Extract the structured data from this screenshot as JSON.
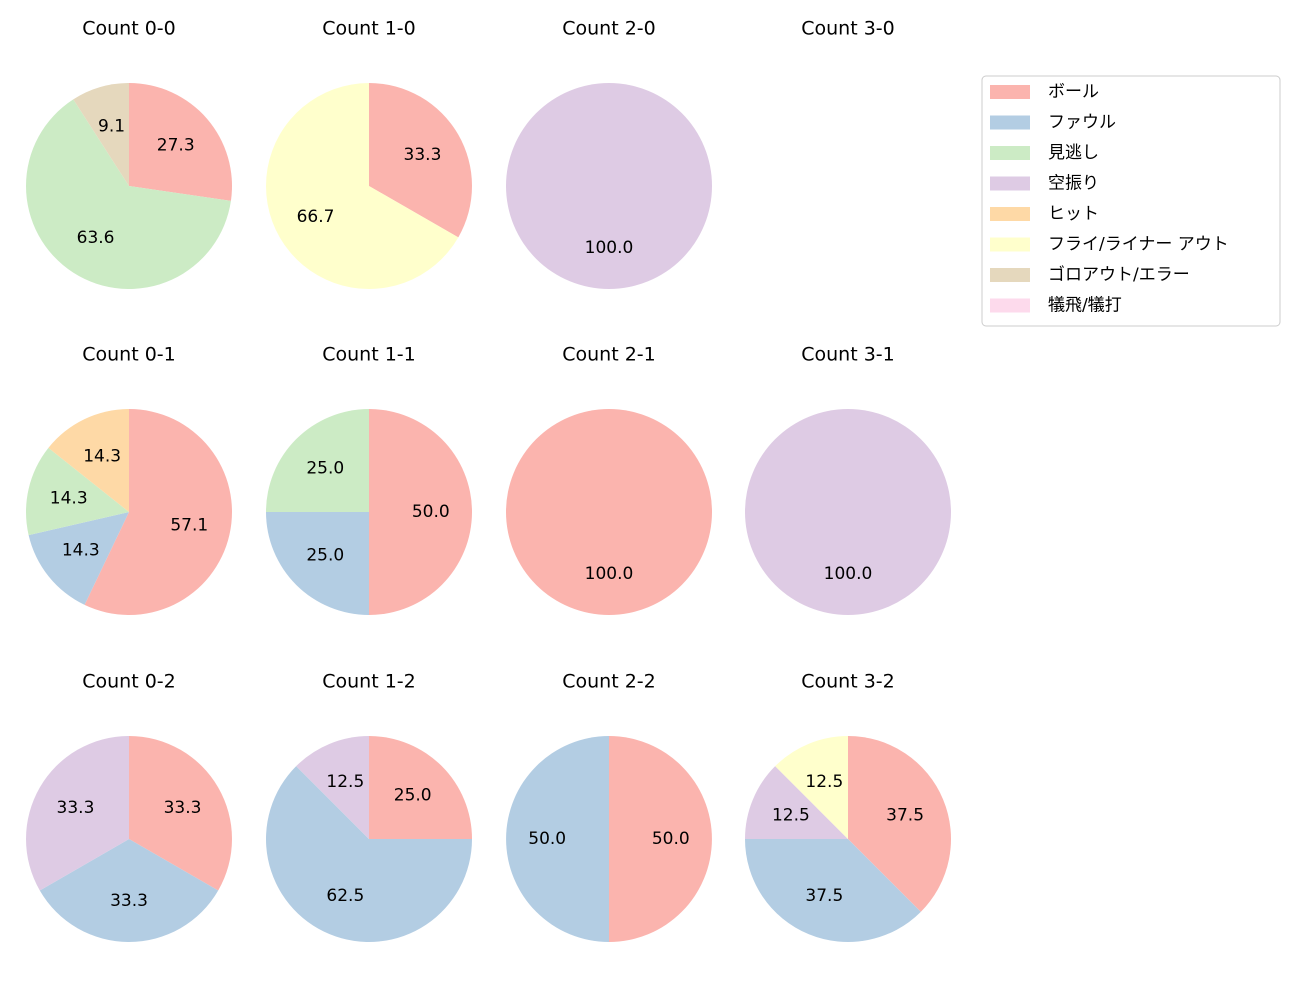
{
  "chart_data": [
    {
      "type": "pie",
      "title": "Count 0-0",
      "values": [
        27.3,
        63.6,
        9.1
      ],
      "value_labels": [
        "27.3",
        "63.6",
        "9.1"
      ],
      "colors": [
        "#fbb4ae",
        "#ccebc5",
        "#e5d8bd"
      ]
    },
    {
      "type": "pie",
      "title": "Count 1-0",
      "values": [
        33.3,
        66.7
      ],
      "value_labels": [
        "33.3",
        "66.7"
      ],
      "colors": [
        "#fbb4ae",
        "#ffffcc"
      ]
    },
    {
      "type": "pie",
      "title": "Count 2-0",
      "values": [
        100
      ],
      "value_labels": [
        "100.0"
      ],
      "colors": [
        "#decbe4"
      ]
    },
    {
      "type": "pie",
      "title": "Count 3-0",
      "values": [],
      "value_labels": [],
      "colors": []
    },
    {
      "type": "pie",
      "title": "Count 0-1",
      "values": [
        57.1,
        14.3,
        14.3,
        14.3
      ],
      "value_labels": [
        "57.1",
        "14.3",
        "14.3",
        "14.3"
      ],
      "colors": [
        "#fbb4ae",
        "#b3cde3",
        "#ccebc5",
        "#fed9a6"
      ]
    },
    {
      "type": "pie",
      "title": "Count 1-1",
      "values": [
        50,
        25,
        25
      ],
      "value_labels": [
        "50.0",
        "25.0",
        "25.0"
      ],
      "colors": [
        "#fbb4ae",
        "#b3cde3",
        "#ccebc5"
      ]
    },
    {
      "type": "pie",
      "title": "Count 2-1",
      "values": [
        100
      ],
      "value_labels": [
        "100.0"
      ],
      "colors": [
        "#fbb4ae"
      ]
    },
    {
      "type": "pie",
      "title": "Count 3-1",
      "values": [
        100
      ],
      "value_labels": [
        "100.0"
      ],
      "colors": [
        "#decbe4"
      ]
    },
    {
      "type": "pie",
      "title": "Count 0-2",
      "values": [
        33.3,
        33.3,
        33.3
      ],
      "value_labels": [
        "33.3",
        "33.3",
        "33.3"
      ],
      "colors": [
        "#fbb4ae",
        "#b3cde3",
        "#decbe4"
      ]
    },
    {
      "type": "pie",
      "title": "Count 1-2",
      "values": [
        25,
        62.5,
        12.5
      ],
      "value_labels": [
        "25.0",
        "62.5",
        "12.5"
      ],
      "colors": [
        "#fbb4ae",
        "#b3cde3",
        "#decbe4"
      ]
    },
    {
      "type": "pie",
      "title": "Count 2-2",
      "values": [
        50,
        50
      ],
      "value_labels": [
        "50.0",
        "50.0"
      ],
      "colors": [
        "#fbb4ae",
        "#b3cde3"
      ]
    },
    {
      "type": "pie",
      "title": "Count 3-2",
      "values": [
        37.5,
        37.5,
        12.5,
        12.5
      ],
      "value_labels": [
        "37.5",
        "37.5",
        "12.5",
        "12.5"
      ],
      "colors": [
        "#fbb4ae",
        "#b3cde3",
        "#decbe4",
        "#ffffcc"
      ]
    }
  ],
  "legend": {
    "items": [
      {
        "name": "ボール",
        "color": "#fbb4ae"
      },
      {
        "name": "ファウル",
        "color": "#b3cde3"
      },
      {
        "name": "見逃し",
        "color": "#ccebc5"
      },
      {
        "name": "空振り",
        "color": "#decbe4"
      },
      {
        "name": "ヒット",
        "color": "#fed9a6"
      },
      {
        "name": "フライ/ライナー アウト",
        "color": "#ffffcc"
      },
      {
        "name": "ゴロアウト/エラー",
        "color": "#e5d8bd"
      },
      {
        "name": "犠飛/犠打",
        "color": "#fddaec"
      }
    ]
  }
}
